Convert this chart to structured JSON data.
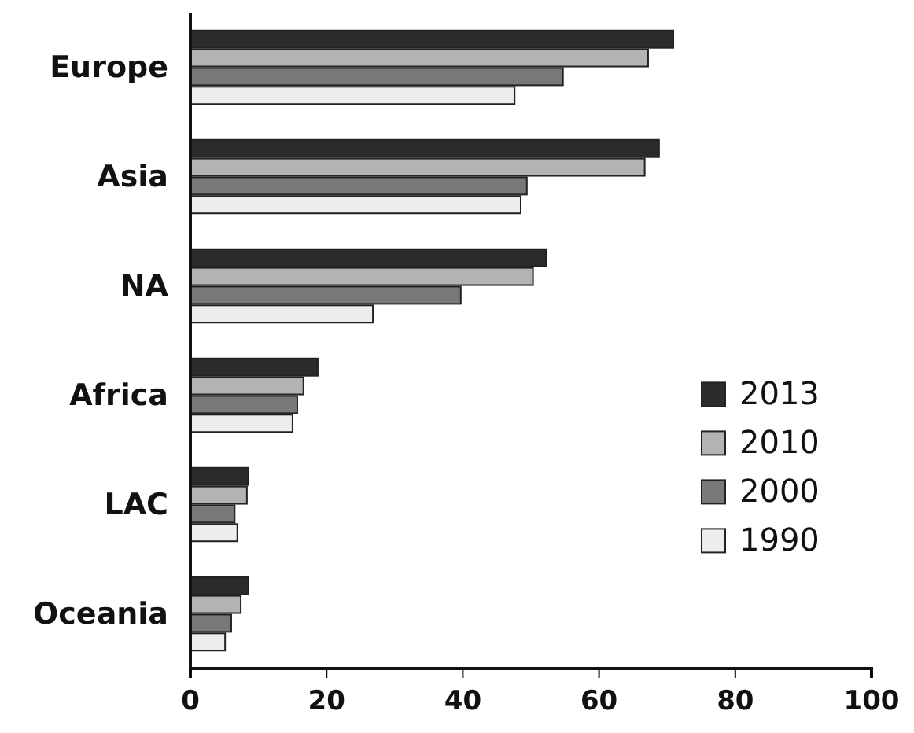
{
  "chart_data": {
    "type": "bar",
    "orientation": "horizontal",
    "categories": [
      "Europe",
      "Asia",
      "NA",
      "Africa",
      "LAC",
      "Oceania"
    ],
    "series": [
      {
        "name": "2013",
        "color": "#2b2b2b",
        "values": [
          70.9,
          68.8,
          52.2,
          18.7,
          8.5,
          8.5
        ]
      },
      {
        "name": "2010",
        "color": "#b3b3b3",
        "values": [
          67.2,
          66.7,
          50.3,
          16.6,
          8.3,
          7.4
        ]
      },
      {
        "name": "2000",
        "color": "#787878",
        "values": [
          54.7,
          49.4,
          39.7,
          15.7,
          6.5,
          6.0
        ]
      },
      {
        "name": "1990",
        "color": "#ededed",
        "values": [
          47.6,
          48.5,
          26.8,
          15.0,
          6.9,
          5.1
        ]
      }
    ],
    "xlim": [
      0,
      100
    ],
    "xticks": [
      0,
      20,
      40,
      60,
      80,
      100
    ],
    "grid": false,
    "legend": "right"
  }
}
